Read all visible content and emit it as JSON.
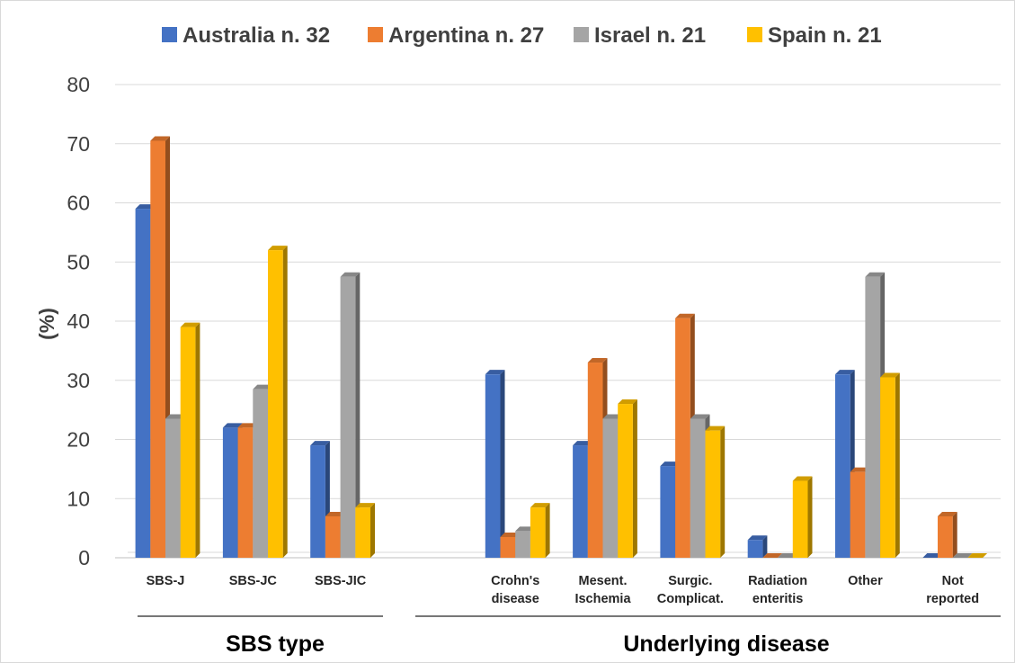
{
  "chart_data": {
    "type": "bar",
    "style": "3d-clustered-column",
    "ylabel": "(%)",
    "ylim": [
      0,
      80
    ],
    "yticks": [
      "0",
      "10",
      "20",
      "30",
      "40",
      "50",
      "60",
      "70",
      "80"
    ],
    "grid": true,
    "legend_position": "top",
    "series": [
      {
        "name": "Australia n. 32",
        "color": "#4472C4",
        "values": [
          59,
          22,
          19,
          null,
          31,
          19,
          15.5,
          3,
          31,
          0
        ]
      },
      {
        "name": "Argentina n. 27",
        "color": "#ED7D31",
        "values": [
          70.5,
          22,
          7,
          null,
          3.5,
          33,
          40.5,
          0,
          14.5,
          7
        ]
      },
      {
        "name": "Israel n. 21",
        "color": "#A5A5A5",
        "values": [
          23.5,
          28.5,
          47.5,
          null,
          4.5,
          23.5,
          23.5,
          0,
          47.5,
          0
        ]
      },
      {
        "name": "Spain n. 21",
        "color": "#FFC000",
        "values": [
          39,
          52,
          8.5,
          null,
          8.5,
          26,
          21.5,
          13,
          30.5,
          0
        ]
      }
    ],
    "categories": [
      [
        "SBS-J"
      ],
      [
        "SBS-JC"
      ],
      [
        "SBS-JIC"
      ],
      [
        ""
      ],
      [
        "Crohn's",
        "disease"
      ],
      [
        "Mesent.",
        "Ischemia"
      ],
      [
        "Surgic.",
        "Complicat."
      ],
      [
        "Radiation",
        "enteritis"
      ],
      [
        "Other"
      ],
      [
        "Not",
        "reported"
      ]
    ],
    "groups": [
      {
        "label": "SBS type"
      },
      {
        "label": "Underlying disease"
      }
    ]
  }
}
